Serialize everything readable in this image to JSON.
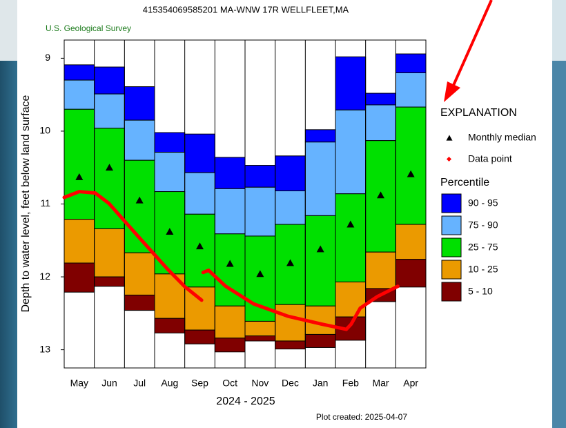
{
  "chart_data": {
    "type": "percentile",
    "title": "415354069585201 MA-WNW 17R WELLFLEET,MA",
    "subtitle": "U.S. Geological Survey",
    "y_label": "Depth to water level, feet below land surface",
    "x_label": "2024 - 2025",
    "note": "Plot created: 2025-04-07",
    "legend_title": "EXPLANATION",
    "percentile_title": "Percentile",
    "categories": [
      "May",
      "Jun",
      "Jul",
      "Aug",
      "Sep",
      "Oct",
      "Nov",
      "Dec",
      "Jan",
      "Feb",
      "Mar",
      "Apr"
    ],
    "xlim": [
      -0.5,
      11.5
    ],
    "ylim": [
      8.75,
      13.25
    ],
    "y_inverted": true,
    "yticks": [
      9,
      10,
      11,
      12,
      13
    ],
    "series": [
      {
        "name": "90 - 95",
        "color": "#0000ff",
        "values": [
          [
            9.09,
            9.3
          ],
          [
            9.12,
            9.49
          ],
          [
            9.39,
            9.85
          ],
          [
            10.02,
            10.29
          ],
          [
            10.04,
            10.57
          ],
          [
            10.36,
            10.79
          ],
          [
            10.47,
            10.77
          ],
          [
            10.34,
            10.82
          ],
          [
            9.98,
            10.15
          ],
          [
            8.98,
            9.71
          ],
          [
            9.48,
            9.64
          ],
          [
            8.94,
            9.2
          ]
        ]
      },
      {
        "name": "75 - 90",
        "color": "#66b3ff",
        "values": [
          [
            9.3,
            9.7
          ],
          [
            9.49,
            9.96
          ],
          [
            9.85,
            10.4
          ],
          [
            10.29,
            10.83
          ],
          [
            10.57,
            11.14
          ],
          [
            10.79,
            11.41
          ],
          [
            10.77,
            11.44
          ],
          [
            10.82,
            11.28
          ],
          [
            10.15,
            11.16
          ],
          [
            9.71,
            10.86
          ],
          [
            9.64,
            10.13
          ],
          [
            9.2,
            9.67
          ]
        ]
      },
      {
        "name": "25 - 75",
        "color": "#00e000",
        "values": [
          [
            9.7,
            11.21
          ],
          [
            9.96,
            11.34
          ],
          [
            10.4,
            11.67
          ],
          [
            10.83,
            11.96
          ],
          [
            11.14,
            12.14
          ],
          [
            11.41,
            12.4
          ],
          [
            11.44,
            12.61
          ],
          [
            11.28,
            12.38
          ],
          [
            11.16,
            12.4
          ],
          [
            10.86,
            12.07
          ],
          [
            10.13,
            11.66
          ],
          [
            9.67,
            11.28
          ]
        ]
      },
      {
        "name": "10 - 25",
        "color": "#eb9a00",
        "values": [
          [
            11.21,
            11.81
          ],
          [
            11.34,
            12.0
          ],
          [
            11.67,
            12.25
          ],
          [
            11.96,
            12.57
          ],
          [
            12.14,
            12.73
          ],
          [
            12.4,
            12.84
          ],
          [
            12.61,
            12.81
          ],
          [
            12.38,
            12.88
          ],
          [
            12.4,
            12.79
          ],
          [
            12.07,
            12.55
          ],
          [
            11.66,
            12.16
          ],
          [
            11.28,
            11.76
          ]
        ]
      },
      {
        "name": "5 - 10",
        "color": "#800000",
        "values": [
          [
            11.81,
            12.21
          ],
          [
            12.0,
            12.13
          ],
          [
            12.25,
            12.46
          ],
          [
            12.57,
            12.77
          ],
          [
            12.73,
            12.92
          ],
          [
            12.84,
            13.03
          ],
          [
            12.81,
            12.88
          ],
          [
            12.88,
            12.99
          ],
          [
            12.79,
            12.97
          ],
          [
            12.55,
            12.87
          ],
          [
            12.16,
            12.34
          ],
          [
            11.76,
            12.14
          ]
        ]
      }
    ],
    "median": {
      "name": "Monthly median",
      "color": "#000000",
      "values": [
        10.63,
        10.5,
        10.95,
        11.38,
        11.58,
        11.82,
        11.96,
        11.81,
        11.62,
        11.28,
        10.88,
        10.59
      ]
    },
    "data_points": {
      "name": "Data point",
      "color": "#ff0000",
      "x": [
        -0.5,
        0,
        0.53,
        0.98,
        1.9,
        2.92,
        3.49,
        4.06,
        null,
        4.11,
        4.29,
        4.86,
        5.78,
        6.92,
        8.06,
        8.86,
        9.02,
        9.32,
        9.89,
        10.57
      ],
      "values": [
        10.91,
        10.83,
        10.85,
        10.99,
        11.42,
        11.89,
        12.13,
        12.32,
        null,
        11.94,
        11.91,
        12.13,
        12.37,
        12.54,
        12.65,
        12.72,
        12.65,
        12.43,
        12.27,
        12.13
      ]
    }
  }
}
